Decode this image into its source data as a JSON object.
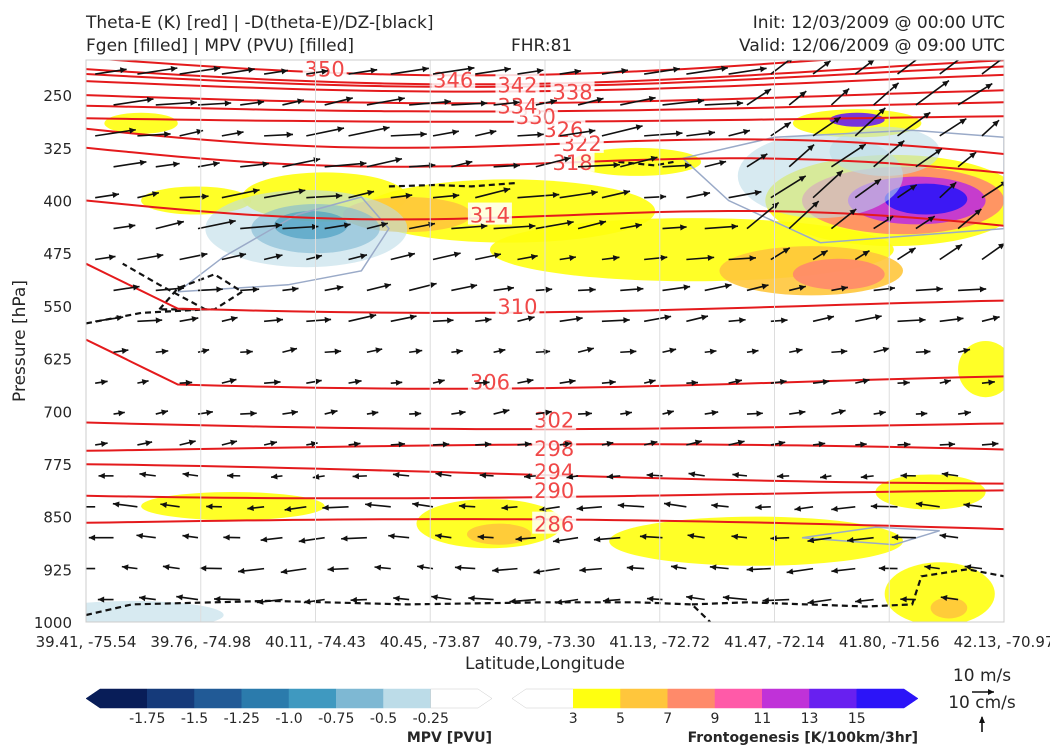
{
  "header": {
    "title_line1": "Theta-E (K) [red] | -D(theta-E)/DZ-[black]",
    "title_line2": "Fgen [filled] | MPV (PVU) [filled]",
    "fhr": "FHR:81",
    "init": "Init: 12/03/2009 @ 00:00 UTC",
    "valid": "Valid: 12/06/2009 @ 09:00 UTC"
  },
  "chart_data": {
    "type": "cross-section",
    "xlabel": "Latitude,Longitude",
    "ylabel": "Pressure [hPa]",
    "x_ticks": [
      "39.41, -75.54",
      "39.76, -74.98",
      "40.11, -74.43",
      "40.45, -73.87",
      "40.79, -73.30",
      "41.13, -72.72",
      "41.47, -72.14",
      "41.80, -71.56",
      "42.13, -70.97"
    ],
    "y_ticks": [
      250,
      325,
      400,
      475,
      550,
      625,
      700,
      775,
      850,
      925,
      1000
    ],
    "ylim": [
      1000,
      200
    ],
    "y_scale": "linear-inverted",
    "theta_e_color": "#e41a1c",
    "theta_e_contours": [
      {
        "value": 286,
        "label": "286",
        "label_pos": [
          0.51,
          860
        ]
      },
      {
        "value": 290,
        "label": "290",
        "label_pos": [
          0.51,
          812
        ]
      },
      {
        "value": 294,
        "label": "294",
        "label_pos": [
          0.51,
          785
        ]
      },
      {
        "value": 298,
        "label": "298",
        "label_pos": [
          0.51,
          752
        ]
      },
      {
        "value": 302,
        "label": "302",
        "label_pos": [
          0.51,
          712
        ]
      },
      {
        "value": 306,
        "label": "306",
        "label_pos": [
          0.44,
          658
        ]
      },
      {
        "value": 310,
        "label": "310",
        "label_pos": [
          0.47,
          550
        ]
      },
      {
        "value": 314,
        "label": "314",
        "label_pos": [
          0.44,
          420
        ]
      },
      {
        "value": 318,
        "label": "318",
        "label_pos": [
          0.53,
          345
        ]
      },
      {
        "value": 322,
        "label": "322",
        "label_pos": [
          0.54,
          318
        ]
      },
      {
        "value": 326,
        "label": "326",
        "label_pos": [
          0.52,
          298
        ]
      },
      {
        "value": 330,
        "label": "330",
        "label_pos": [
          0.49,
          280
        ]
      },
      {
        "value": 334,
        "label": "334",
        "label_pos": [
          0.47,
          265
        ]
      },
      {
        "value": 338,
        "label": "338",
        "label_pos": [
          0.53,
          245
        ]
      },
      {
        "value": 342,
        "label": "342",
        "label_pos": [
          0.47,
          235
        ]
      },
      {
        "value": 346,
        "label": "346",
        "label_pos": [
          0.4,
          228
        ]
      },
      {
        "value": 350,
        "label": "350",
        "label_pos": [
          0.26,
          212
        ]
      }
    ],
    "wind_reference": {
      "horizontal": "10 m/s",
      "vertical": "10 cm/s"
    },
    "mpv_colorbar": {
      "label": "MPV [PVU]",
      "ticks": [
        "-1.75",
        "-1.5",
        "-1.25",
        "-1.0",
        "-0.75",
        "-0.5",
        "-0.25"
      ],
      "colors": [
        "#081d58",
        "#153a7a",
        "#215a96",
        "#2b7bac",
        "#3f99c0",
        "#7eb8d3",
        "#bcdce8",
        "#ffffff"
      ]
    },
    "fgen_colorbar": {
      "label": "Frontogenesis [K/100km/3hr]",
      "ticks": [
        "3",
        "5",
        "7",
        "9",
        "11",
        "13",
        "15"
      ],
      "colors": [
        "#ffffff",
        "#ffff10",
        "#ffc63c",
        "#ff8a6a",
        "#ff5aa8",
        "#c032d8",
        "#6820f0",
        "#2c14f8"
      ]
    }
  }
}
